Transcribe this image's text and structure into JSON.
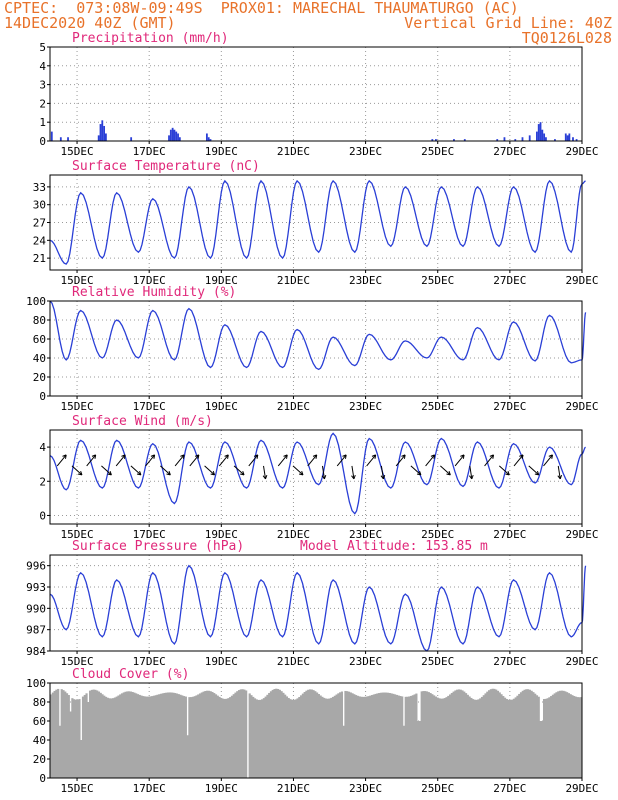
{
  "header": {
    "left_line1": "CPTEC:  073:08W-09:49S  PROX01: MARECHAL THAUMATURGO (AC)",
    "left_line2": "14DEC2020 40Z (GMT)",
    "right_line2": "Vertical Grid Line: 40Z",
    "right_line3": "TQ0126L028"
  },
  "colors": {
    "header": "#e8722a",
    "panel_title": "#e0287a",
    "series": "#2a3fd6",
    "cloud": "#a8a8a8",
    "grid": "#9a9a9a"
  },
  "x_ticks": [
    "15DEC",
    "17DEC",
    "19DEC",
    "21DEC",
    "23DEC",
    "25DEC",
    "27DEC",
    "29DEC"
  ],
  "chart_data": [
    {
      "type": "bar",
      "title": "Precipitation (mm/h)",
      "ylim": [
        0,
        5
      ],
      "yticks": [
        0,
        1,
        2,
        3,
        4,
        5
      ],
      "x_days": [
        0.05,
        0.3,
        0.5,
        1.35,
        1.4,
        1.45,
        1.5,
        1.55,
        2.25,
        3.3,
        3.35,
        3.4,
        3.45,
        3.5,
        3.55,
        3.6,
        4.35,
        4.4,
        4.45,
        10.6,
        10.7,
        11.2,
        11.5,
        12.4,
        12.6,
        12.9,
        13.1,
        13.3,
        13.5,
        13.55,
        13.6,
        13.65,
        13.7,
        13.75,
        14.0,
        14.3,
        14.35,
        14.4,
        14.5,
        14.6
      ],
      "values": [
        0.5,
        0.2,
        0.2,
        0.3,
        0.9,
        1.1,
        0.8,
        0.4,
        0.2,
        0.3,
        0.6,
        0.7,
        0.6,
        0.5,
        0.4,
        0.2,
        0.4,
        0.2,
        0.1,
        0.1,
        0.1,
        0.1,
        0.1,
        0.1,
        0.2,
        0.1,
        0.2,
        0.3,
        0.5,
        0.9,
        1.0,
        0.6,
        0.4,
        0.2,
        0.1,
        0.4,
        0.3,
        0.4,
        0.2,
        0.1
      ]
    },
    {
      "type": "line",
      "title": "Surface Temperature (nC)",
      "ylim": [
        19,
        35
      ],
      "yticks": [
        21,
        24,
        27,
        30,
        33
      ],
      "daily_max": [
        32,
        32,
        31,
        33,
        34,
        34,
        34,
        34,
        34,
        33,
        33,
        33,
        33,
        34,
        34
      ],
      "daily_min": [
        20,
        21,
        22,
        21,
        21,
        21,
        21,
        22,
        22,
        23,
        23,
        23,
        23,
        22,
        22
      ],
      "start": 24,
      "end": 33.5
    },
    {
      "type": "line",
      "title": "Relative Humidity (%)",
      "ylim": [
        0,
        100
      ],
      "yticks": [
        0,
        20,
        40,
        60,
        80,
        100
      ],
      "daily_max": [
        90,
        80,
        90,
        92,
        75,
        68,
        70,
        62,
        65,
        58,
        62,
        72,
        78,
        85,
        88
      ],
      "daily_min": [
        38,
        40,
        40,
        38,
        30,
        30,
        30,
        28,
        32,
        38,
        40,
        38,
        38,
        37,
        35
      ],
      "start": 100,
      "end": 38
    },
    {
      "type": "line",
      "title": "Surface Wind (m/s)",
      "ylim": [
        -0.5,
        5
      ],
      "yticks": [
        0,
        2,
        4
      ],
      "daily_max": [
        4.4,
        4.4,
        4.2,
        4.3,
        4.3,
        4.4,
        4.3,
        4.8,
        4.5,
        4.3,
        4.5,
        4.3,
        4.2,
        4.0,
        4.0
      ],
      "daily_min": [
        1.5,
        1.6,
        1.6,
        0.7,
        1.6,
        1.6,
        1.6,
        1.8,
        0.1,
        1.6,
        1.8,
        1.7,
        1.6,
        1.9,
        1.8
      ],
      "start": 3.5,
      "end": 3.6,
      "arrow_directions": [
        "NE",
        "SE",
        "NE",
        "SE",
        "NE",
        "SE",
        "NE",
        "SE",
        "NE",
        "NE",
        "SE",
        "NE",
        "SE",
        "NE",
        "S",
        "NE",
        "SE",
        "NE",
        "S",
        "NE",
        "S",
        "NE",
        "S",
        "NE",
        "SE",
        "NE",
        "SE",
        "NE",
        "S",
        "NE",
        "SE",
        "NE",
        "SE",
        "NE",
        "S"
      ]
    },
    {
      "type": "line",
      "title": "Surface Pressure (hPa)",
      "subtitle": "Model Altitude: 153.85 m",
      "ylim": [
        984,
        997.5
      ],
      "yticks": [
        984,
        987,
        990,
        993,
        996
      ],
      "daily_max": [
        995,
        994,
        995,
        996,
        995,
        994,
        995,
        994,
        993,
        992,
        993,
        993,
        994,
        995,
        996
      ],
      "daily_min": [
        987,
        986,
        986,
        985,
        986,
        986,
        986,
        985,
        985,
        985,
        984,
        985,
        986,
        987,
        986
      ],
      "start": 992,
      "end": 988
    },
    {
      "type": "area",
      "title": "Cloud Cover (%)",
      "ylim": [
        0,
        100
      ],
      "yticks": [
        0,
        20,
        40,
        60,
        80,
        100
      ],
      "base_level": 88,
      "dips_x_days": [
        0.25,
        0.55,
        0.85,
        1.05,
        3.8,
        5.45,
        8.1,
        9.8,
        10.2,
        13.6
      ],
      "dips_values": [
        55,
        70,
        40,
        80,
        45,
        0,
        55,
        55,
        60,
        60
      ]
    }
  ]
}
